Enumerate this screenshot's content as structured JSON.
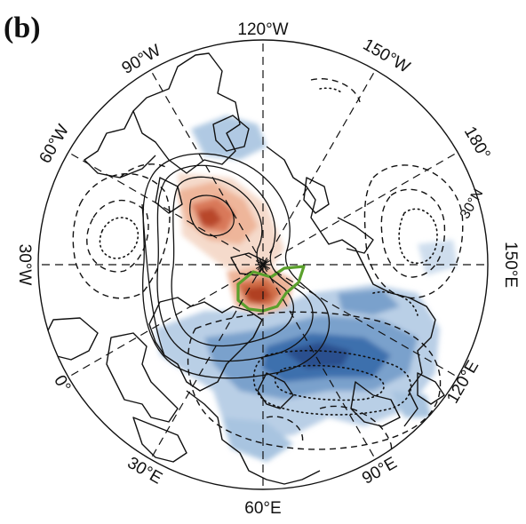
{
  "figure": {
    "panel_label": "(b)",
    "projection": "north-polar-stereographic",
    "longitude_labels": [
      "120°W",
      "150°W",
      "180°",
      "150°E",
      "120°E",
      "90°E",
      "60°E",
      "30°E",
      "0°",
      "30°W",
      "60°W",
      "90°W"
    ],
    "latitude_label": "30°N",
    "colors": {
      "positive_shading": "#c8542e",
      "negative_shading": "#2e63a3",
      "coastline": "#111111",
      "positive_contour": "#111111",
      "negative_contour": "#111111",
      "region_outline": "#5aa02c"
    },
    "contour_styles": {
      "positive": "solid",
      "negative": "dashed",
      "dotted": "dotted"
    },
    "highlighted_region": "green-outline",
    "center_marker": "pole-star"
  }
}
